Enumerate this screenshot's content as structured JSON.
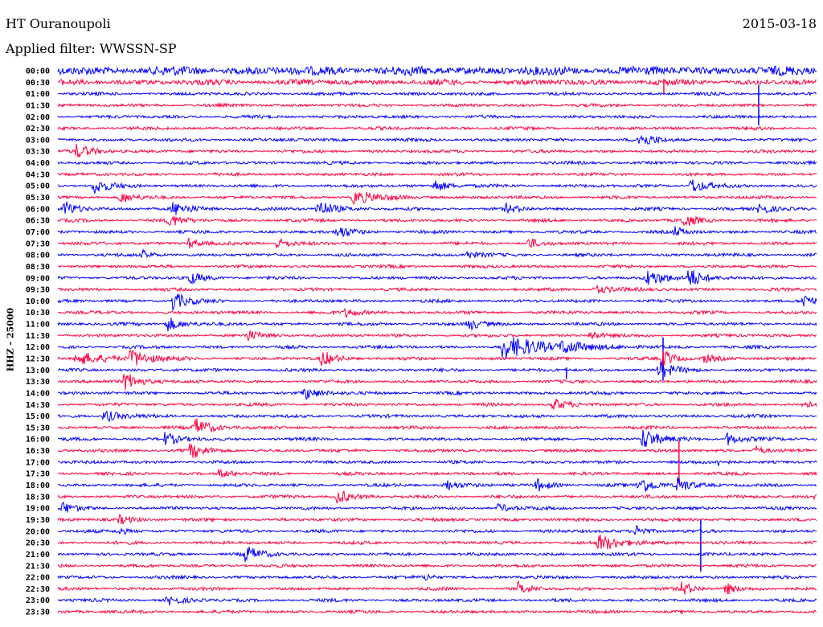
{
  "header": {
    "station": "HT Ouranoupoli",
    "filter": "Applied filter: WWSSN-SP",
    "date": "2015-03-18"
  },
  "chart_data": {
    "type": "line",
    "title": "HT Ouranoupoli",
    "subtitle": "Applied filter: WWSSN-SP",
    "ylabel": "HHZ - 25000",
    "xlabel": "",
    "x_range_minutes": [
      0,
      30
    ],
    "row_labels": [
      "00:00",
      "00:30",
      "01:00",
      "01:30",
      "02:00",
      "02:30",
      "03:00",
      "03:30",
      "04:00",
      "04:30",
      "05:00",
      "05:30",
      "06:00",
      "06:30",
      "07:00",
      "07:30",
      "08:00",
      "08:30",
      "09:00",
      "09:30",
      "10:00",
      "10:30",
      "11:00",
      "11:30",
      "12:00",
      "12:30",
      "13:00",
      "13:30",
      "14:00",
      "14:30",
      "15:00",
      "15:30",
      "16:00",
      "16:30",
      "17:00",
      "17:30",
      "18:00",
      "18:30",
      "19:00",
      "19:30",
      "20:00",
      "20:30",
      "21:00",
      "21:30",
      "22:00",
      "22:30",
      "23:00",
      "23:30"
    ],
    "colors": [
      "#0000ff",
      "#ff0040"
    ],
    "background_noise": {
      "default": 1.4,
      "row0": 4,
      "row1": 2.5
    },
    "events_columns": [
      "row",
      "minute",
      "relative_amplitude",
      "duration_min",
      "kind"
    ],
    "events": [
      [
        1,
        23.96,
        10,
        0.1,
        "spike"
      ],
      [
        2,
        27.71,
        28,
        0.1,
        "spike"
      ],
      [
        6,
        22.97,
        8,
        1,
        "quake"
      ],
      [
        7,
        0.73,
        8,
        1,
        "quake"
      ],
      [
        10,
        1.43,
        10,
        0.8,
        "quake"
      ],
      [
        10,
        14.87,
        8,
        0.8,
        "quake"
      ],
      [
        10,
        25.04,
        10,
        0.8,
        "quake"
      ],
      [
        11,
        2.48,
        8,
        0.6,
        "quake"
      ],
      [
        11,
        11.69,
        8,
        1.5,
        "quake"
      ],
      [
        12,
        0.25,
        10,
        0.8,
        "quake"
      ],
      [
        12,
        4.54,
        8,
        1,
        "quake"
      ],
      [
        12,
        10.26,
        12,
        0.9,
        "quake"
      ],
      [
        12,
        17.73,
        5,
        0.8,
        "quake"
      ],
      [
        12,
        27.74,
        8,
        0.7,
        "quake"
      ],
      [
        13,
        4.39,
        8,
        0.8,
        "quake"
      ],
      [
        13,
        24.72,
        8,
        0.8,
        "quake"
      ],
      [
        14,
        11.06,
        8,
        0.8,
        "quake"
      ],
      [
        14,
        24.4,
        6,
        0.6,
        "quake"
      ],
      [
        15,
        8.67,
        8,
        0.7,
        "quake"
      ],
      [
        15,
        5.18,
        6,
        0.6,
        "quake"
      ],
      [
        15,
        18.62,
        8,
        0.5,
        "quake"
      ],
      [
        16,
        3.37,
        5,
        0.6,
        "quake"
      ],
      [
        16,
        16.08,
        5,
        0.8,
        "quake"
      ],
      [
        18,
        5.18,
        8,
        0.8,
        "quake"
      ],
      [
        18,
        23.29,
        10,
        1,
        "quake"
      ],
      [
        18,
        24.94,
        14,
        0.8,
        "quake"
      ],
      [
        19,
        21.23,
        5,
        1.2,
        "quake"
      ],
      [
        20,
        4.54,
        12,
        0.8,
        "quake"
      ],
      [
        20,
        29.49,
        10,
        0.5,
        "quake"
      ],
      [
        21,
        11.38,
        5,
        1,
        "quake"
      ],
      [
        22,
        4.32,
        10,
        0.8,
        "quake"
      ],
      [
        22,
        16.21,
        8,
        0.7,
        "quake"
      ],
      [
        23,
        7.5,
        6,
        0.7,
        "quake"
      ],
      [
        23,
        21.07,
        6,
        0.6,
        "quake"
      ],
      [
        24,
        17.57,
        14,
        2.5,
        "quake"
      ],
      [
        24,
        19.96,
        8,
        1,
        "quake"
      ],
      [
        24,
        23.93,
        30,
        0.1,
        "spike"
      ],
      [
        25,
        0.73,
        8,
        1.8,
        "quake"
      ],
      [
        25,
        2.89,
        12,
        0.9,
        "quake"
      ],
      [
        25,
        10.42,
        10,
        0.8,
        "quake"
      ],
      [
        25,
        23.93,
        12,
        0.6,
        "quake"
      ],
      [
        25,
        25.52,
        6,
        0.7,
        "quake"
      ],
      [
        26,
        23.77,
        10,
        0.9,
        "quake"
      ],
      [
        26,
        20.11,
        8,
        0.1,
        "spike"
      ],
      [
        27,
        2.64,
        12,
        0.9,
        "quake"
      ],
      [
        28,
        9.72,
        8,
        0.9,
        "quake"
      ],
      [
        29,
        19.57,
        8,
        0.8,
        "quake"
      ],
      [
        29,
        29.49,
        5,
        0.5,
        "quake"
      ],
      [
        30,
        1.84,
        8,
        0.9,
        "quake"
      ],
      [
        31,
        5.4,
        12,
        1,
        "quake"
      ],
      [
        32,
        4.23,
        8,
        0.8,
        "quake"
      ],
      [
        32,
        23.13,
        14,
        0.9,
        "quake"
      ],
      [
        32,
        26.47,
        8,
        0.8,
        "quake"
      ],
      [
        33,
        5.24,
        10,
        0.8,
        "quake"
      ],
      [
        33,
        24.56,
        30,
        0.1,
        "spike"
      ],
      [
        33,
        27.58,
        6,
        0.6,
        "quake"
      ],
      [
        34,
        26.09,
        4,
        0.5,
        "quake"
      ],
      [
        35,
        6.36,
        5,
        0.8,
        "quake"
      ],
      [
        36,
        15.28,
        8,
        0.7,
        "quake"
      ],
      [
        36,
        18.94,
        8,
        0.7,
        "quake"
      ],
      [
        36,
        22.97,
        12,
        0.9,
        "quake"
      ],
      [
        36,
        24.5,
        10,
        0.7,
        "quake"
      ],
      [
        37,
        11.06,
        10,
        0.7,
        "quake"
      ],
      [
        37,
        29.96,
        8,
        0.3,
        "quake"
      ],
      [
        38,
        0.19,
        8,
        0.6,
        "quake"
      ],
      [
        38,
        17.41,
        6,
        0.7,
        "quake"
      ],
      [
        39,
        2.41,
        5,
        0.9,
        "quake"
      ],
      [
        40,
        2.41,
        5,
        0.5,
        "quake"
      ],
      [
        40,
        22.88,
        8,
        0.6,
        "quake"
      ],
      [
        40,
        25.42,
        36,
        0.1,
        "spike"
      ],
      [
        41,
        21.39,
        10,
        1.4,
        "quake"
      ],
      [
        42,
        7.4,
        10,
        0.9,
        "quake"
      ],
      [
        44,
        14.55,
        4,
        0.4,
        "quake"
      ],
      [
        45,
        18.21,
        8,
        0.6,
        "quake"
      ],
      [
        45,
        24.66,
        8,
        0.7,
        "quake"
      ],
      [
        45,
        26.41,
        8,
        0.6,
        "quake"
      ],
      [
        46,
        4.32,
        6,
        0.8,
        "quake"
      ]
    ]
  }
}
